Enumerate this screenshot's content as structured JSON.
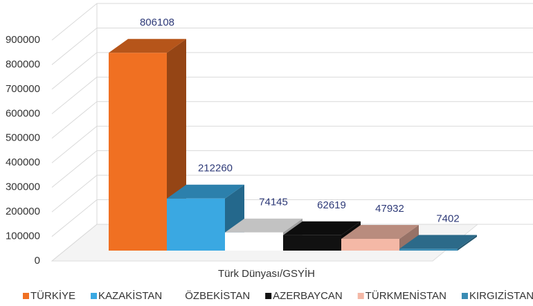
{
  "chart_data": {
    "type": "bar3d",
    "categories": [
      "Türk Dünyası/GSYİH"
    ],
    "series": [
      {
        "name": "TÜRKİYE",
        "color": "#f07022",
        "values": [
          806108
        ]
      },
      {
        "name": "KAZAKİSTAN",
        "color": "#3aa8e2",
        "values": [
          212260
        ]
      },
      {
        "name": "ÖZBEKİSTAN",
        "color": "#ffffff",
        "values": [
          74145
        ]
      },
      {
        "name": "AZERBAYCAN",
        "color": "#111111",
        "values": [
          62619
        ]
      },
      {
        "name": "TÜRKMENİSTAN",
        "color": "#f4b8a6",
        "values": [
          47932
        ]
      },
      {
        "name": "KIRGIZİSTAN",
        "color": "#3a8cb4",
        "values": [
          7402
        ]
      }
    ],
    "ylim": [
      0,
      900000
    ],
    "yticks": [
      0,
      100000,
      200000,
      300000,
      400000,
      500000,
      600000,
      700000,
      800000,
      900000
    ],
    "grid": true,
    "legend": "bottom"
  }
}
